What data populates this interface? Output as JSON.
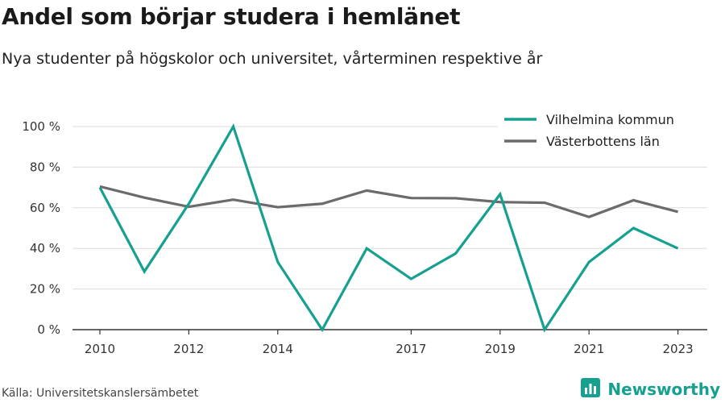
{
  "colors": {
    "series1": "#16a08f",
    "series2": "#6b6b6d",
    "grid": "#dddddd",
    "axis": "#333333",
    "brand": "#16a08f"
  },
  "footer": {
    "source": "Källa: Universitetskanslersämbetet",
    "brand": "Newsworthy",
    "brand_icon": "bar-chart-logo-icon"
  },
  "chart_data": {
    "type": "line",
    "title": "Andel som börjar studera i hemlänet",
    "subtitle": "Nya studenter på högskolor och universitet, vårterminen respektive år",
    "xlabel": "",
    "ylabel": "",
    "x": [
      2010,
      2011,
      2012,
      2013,
      2014,
      2015,
      2016,
      2017,
      2018,
      2019,
      2020,
      2021,
      2022,
      2023
    ],
    "x_tick_labels": [
      "2010",
      "2012",
      "2014",
      "2017",
      "2019",
      "2021",
      "2023"
    ],
    "y_tick_labels": [
      "0 %",
      "20 %",
      "40 %",
      "60 %",
      "80 %",
      "100 %"
    ],
    "ylim": [
      0,
      100
    ],
    "grid": true,
    "legend_position": "top-right",
    "series": [
      {
        "name": "Vilhelmina kommun",
        "values": [
          70,
          28.6,
          62,
          100,
          33.3,
          0,
          40,
          25,
          37.5,
          66.7,
          0,
          33.3,
          50,
          40
        ]
      },
      {
        "name": "Västerbottens län",
        "values": [
          70.5,
          65,
          60.5,
          64,
          60.3,
          62,
          68.5,
          64.8,
          64.7,
          62.8,
          62.5,
          55.5,
          63.7,
          58
        ]
      }
    ]
  }
}
